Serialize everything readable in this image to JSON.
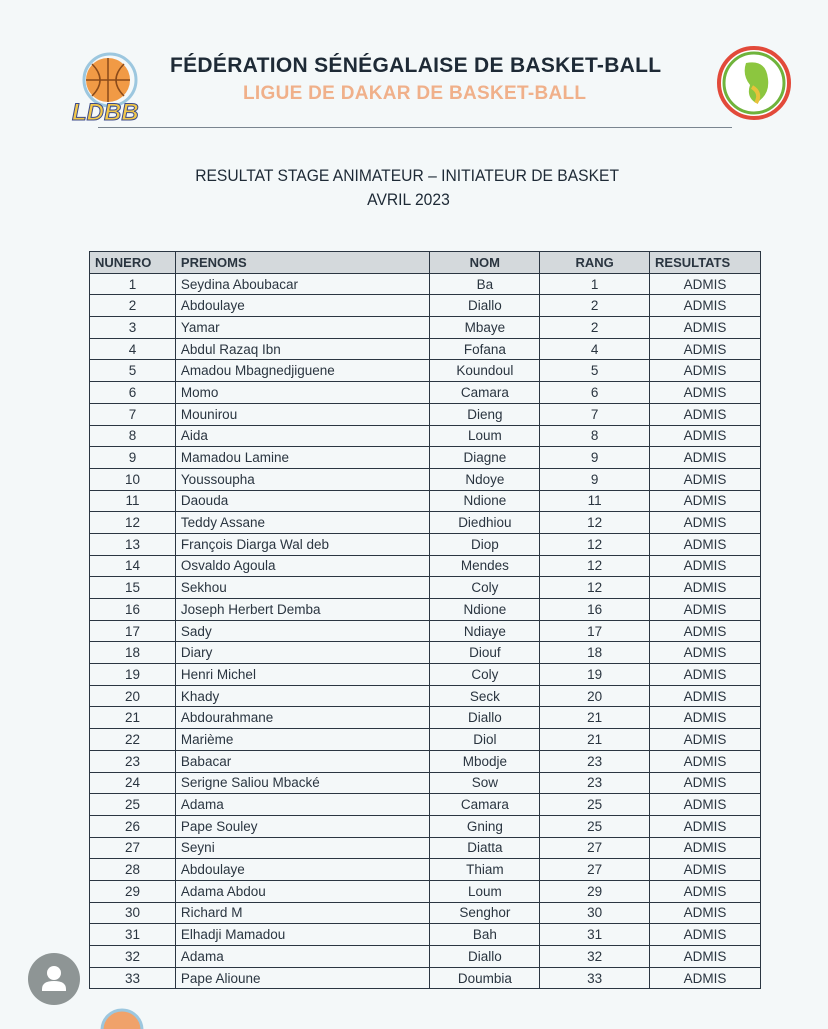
{
  "header": {
    "federation": "FÉDÉRATION SÉNÉGALAISE DE BASKET-BALL",
    "league": "LIGUE DE DAKAR DE BASKET-BALL",
    "left_logo_text": "LDBB"
  },
  "document": {
    "title": "RESULTAT STAGE ANIMATEUR – INITIATEUR DE BASKET",
    "subtitle": "AVRIL 2023"
  },
  "table": {
    "columns": [
      "NUNERO",
      "PRENOMS",
      "NOM",
      "RANG",
      "RESULTATS"
    ],
    "rows": [
      [
        "1",
        "Seydina Aboubacar",
        "Ba",
        "1",
        "ADMIS"
      ],
      [
        "2",
        "Abdoulaye",
        "Diallo",
        "2",
        "ADMIS"
      ],
      [
        "3",
        "Yamar",
        "Mbaye",
        "2",
        "ADMIS"
      ],
      [
        "4",
        "Abdul Razaq Ibn",
        "Fofana",
        "4",
        "ADMIS"
      ],
      [
        "5",
        "Amadou Mbagnedjiguene",
        "Koundoul",
        "5",
        "ADMIS"
      ],
      [
        "6",
        "Momo",
        "Camara",
        "6",
        "ADMIS"
      ],
      [
        "7",
        "Mounirou",
        "Dieng",
        "7",
        "ADMIS"
      ],
      [
        "8",
        "Aida",
        "Loum",
        "8",
        "ADMIS"
      ],
      [
        "9",
        "Mamadou Lamine",
        "Diagne",
        "9",
        "ADMIS"
      ],
      [
        "10",
        "Youssoupha",
        "Ndoye",
        "9",
        "ADMIS"
      ],
      [
        "11",
        "Daouda",
        "Ndione",
        "11",
        "ADMIS"
      ],
      [
        "12",
        "Teddy Assane",
        "Diedhiou",
        "12",
        "ADMIS"
      ],
      [
        "13",
        "François Diarga Wal deb",
        "Diop",
        "12",
        "ADMIS"
      ],
      [
        "14",
        "Osvaldo Agoula",
        "Mendes",
        "12",
        "ADMIS"
      ],
      [
        "15",
        "Sekhou",
        "Coly",
        "12",
        "ADMIS"
      ],
      [
        "16",
        "Joseph Herbert Demba",
        "Ndione",
        "16",
        "ADMIS"
      ],
      [
        "17",
        "Sady",
        "Ndiaye",
        "17",
        "ADMIS"
      ],
      [
        "18",
        "Diary",
        "Diouf",
        "18",
        "ADMIS"
      ],
      [
        "19",
        "Henri Michel",
        "Coly",
        "19",
        "ADMIS"
      ],
      [
        "20",
        "Khady",
        "Seck",
        "20",
        "ADMIS"
      ],
      [
        "21",
        "Abdourahmane",
        "Diallo",
        "21",
        "ADMIS"
      ],
      [
        "22",
        "Marième",
        "Diol",
        "21",
        "ADMIS"
      ],
      [
        "23",
        "Babacar",
        "Mbodje",
        "23",
        "ADMIS"
      ],
      [
        "24",
        "Serigne Saliou Mbacké",
        "Sow",
        "23",
        "ADMIS"
      ],
      [
        "25",
        "Adama",
        "Camara",
        "25",
        "ADMIS"
      ],
      [
        "26",
        "Pape Souley",
        "Gning",
        "25",
        "ADMIS"
      ],
      [
        "27",
        "Seyni",
        "Diatta",
        "27",
        "ADMIS"
      ],
      [
        "28",
        "Abdoulaye",
        "Thiam",
        "27",
        "ADMIS"
      ],
      [
        "29",
        "Adama Abdou",
        "Loum",
        "29",
        "ADMIS"
      ],
      [
        "30",
        "Richard M",
        "Senghor",
        "30",
        "ADMIS"
      ],
      [
        "31",
        "Elhadji Mamadou",
        "Bah",
        "31",
        "ADMIS"
      ],
      [
        "32",
        "Adama",
        "Diallo",
        "32",
        "ADMIS"
      ],
      [
        "33",
        "Pape Alioune",
        "Doumbia",
        "33",
        "ADMIS"
      ]
    ]
  }
}
